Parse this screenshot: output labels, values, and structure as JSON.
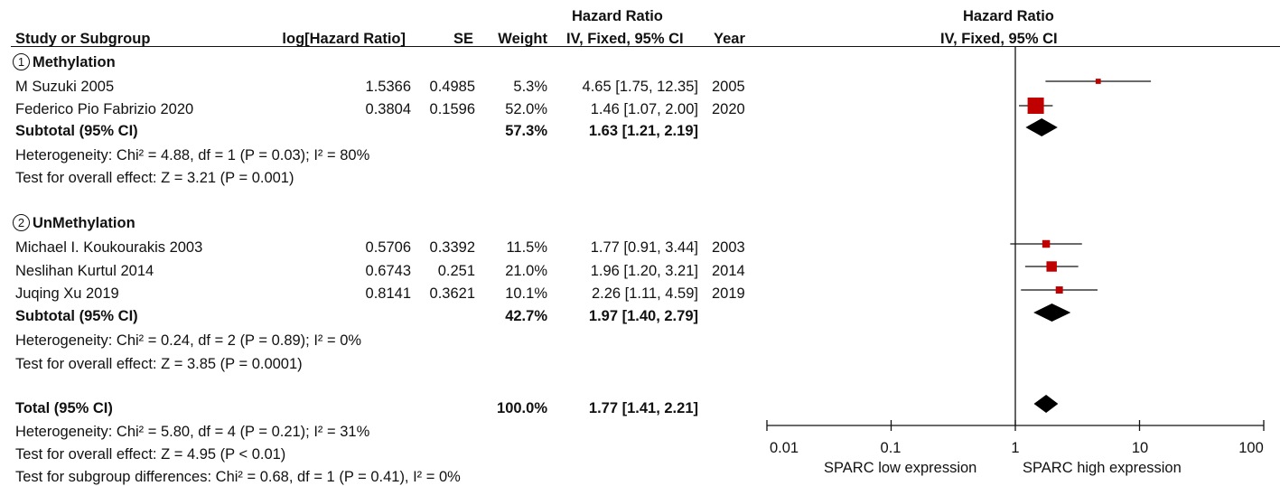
{
  "header": {
    "study": "Study or Subgroup",
    "loghr": "log[Hazard Ratio]",
    "se": "SE",
    "weight": "Weight",
    "hr_title": "Hazard Ratio",
    "hr_sub": "IV, Fixed, 95% CI",
    "year": "Year",
    "plot_title": "Hazard Ratio",
    "plot_sub": "IV, Fixed, 95% CI"
  },
  "groups": [
    {
      "num": "1",
      "name": "Methylation",
      "studies": [
        {
          "study": "M Suzuki 2005",
          "loghr": "1.5366",
          "se": "0.4985",
          "weight": "5.3%",
          "ci": "4.65 [1.75, 12.35]",
          "year": "2005"
        },
        {
          "study": "Federico Pio Fabrizio  2020",
          "loghr": "0.3804",
          "se": "0.1596",
          "weight": "52.0%",
          "ci": "1.46 [1.07, 2.00]",
          "year": "2020"
        }
      ],
      "subtotal": {
        "label": "Subtotal (95% CI)",
        "weight": "57.3%",
        "ci": "1.63 [1.21, 2.19]"
      },
      "heterogeneity": "Heterogeneity: Chi² = 4.88, df = 1 (P = 0.03); I² = 80%",
      "overall": "Test for overall effect: Z = 3.21 (P = 0.001)"
    },
    {
      "num": "2",
      "name": "UnMethylation",
      "studies": [
        {
          "study": "Michael I. Koukourakis 2003",
          "loghr": "0.5706",
          "se": "0.3392",
          "weight": "11.5%",
          "ci": "1.77 [0.91, 3.44]",
          "year": "2003"
        },
        {
          "study": "Neslihan Kurtul 2014",
          "loghr": "0.6743",
          "se": "0.251",
          "weight": "21.0%",
          "ci": "1.96 [1.20, 3.21]",
          "year": "2014"
        },
        {
          "study": "Juqing Xu 2019",
          "loghr": "0.8141",
          "se": "0.3621",
          "weight": "10.1%",
          "ci": "2.26 [1.11, 4.59]",
          "year": "2019"
        }
      ],
      "subtotal": {
        "label": "Subtotal (95% CI)",
        "weight": "42.7%",
        "ci": "1.97 [1.40, 2.79]"
      },
      "heterogeneity": "Heterogeneity: Chi² = 0.24, df = 2 (P = 0.89); I² = 0%",
      "overall": "Test for overall effect: Z = 3.85 (P = 0.0001)"
    }
  ],
  "total": {
    "label": "Total (95% CI)",
    "weight": "100.0%",
    "ci": "1.77 [1.41, 2.21]",
    "heterogeneity": "Heterogeneity: Chi² = 5.80, df = 4 (P = 0.21); I² = 31%",
    "overall": "Test for overall effect: Z = 4.95 (P < 0.01)",
    "subgroup": "Test for subgroup differences: Chi² = 0.68, df = 1 (P = 0.41), I² = 0%"
  },
  "axis": {
    "ticks": [
      "0.01",
      "0.1",
      "1",
      "10",
      "100"
    ],
    "left_label": "SPARC low expression",
    "right_label": "SPARC high expression"
  },
  "colors": {
    "square": "#c00000",
    "diamond": "#000000",
    "line": "#111111"
  },
  "chart_data": {
    "type": "forest",
    "scale": "log",
    "xlim": [
      0.01,
      100
    ],
    "null_value": 1,
    "studies": [
      {
        "name": "M Suzuki 2005",
        "group": "Methylation",
        "hr": 4.65,
        "lo": 1.75,
        "hi": 12.35,
        "weight": 5.3
      },
      {
        "name": "Federico Pio Fabrizio  2020",
        "group": "Methylation",
        "hr": 1.46,
        "lo": 1.07,
        "hi": 2.0,
        "weight": 52.0
      },
      {
        "name": "Michael I. Koukourakis 2003",
        "group": "UnMethylation",
        "hr": 1.77,
        "lo": 0.91,
        "hi": 3.44,
        "weight": 11.5
      },
      {
        "name": "Neslihan Kurtul 2014",
        "group": "UnMethylation",
        "hr": 1.96,
        "lo": 1.2,
        "hi": 3.21,
        "weight": 21.0
      },
      {
        "name": "Juqing Xu 2019",
        "group": "UnMethylation",
        "hr": 2.26,
        "lo": 1.11,
        "hi": 4.59,
        "weight": 10.1
      }
    ],
    "summaries": [
      {
        "name": "Subtotal Methylation",
        "hr": 1.63,
        "lo": 1.21,
        "hi": 2.19
      },
      {
        "name": "Subtotal UnMethylation",
        "hr": 1.97,
        "lo": 1.4,
        "hi": 2.79
      },
      {
        "name": "Total",
        "hr": 1.77,
        "lo": 1.41,
        "hi": 2.21
      }
    ]
  }
}
